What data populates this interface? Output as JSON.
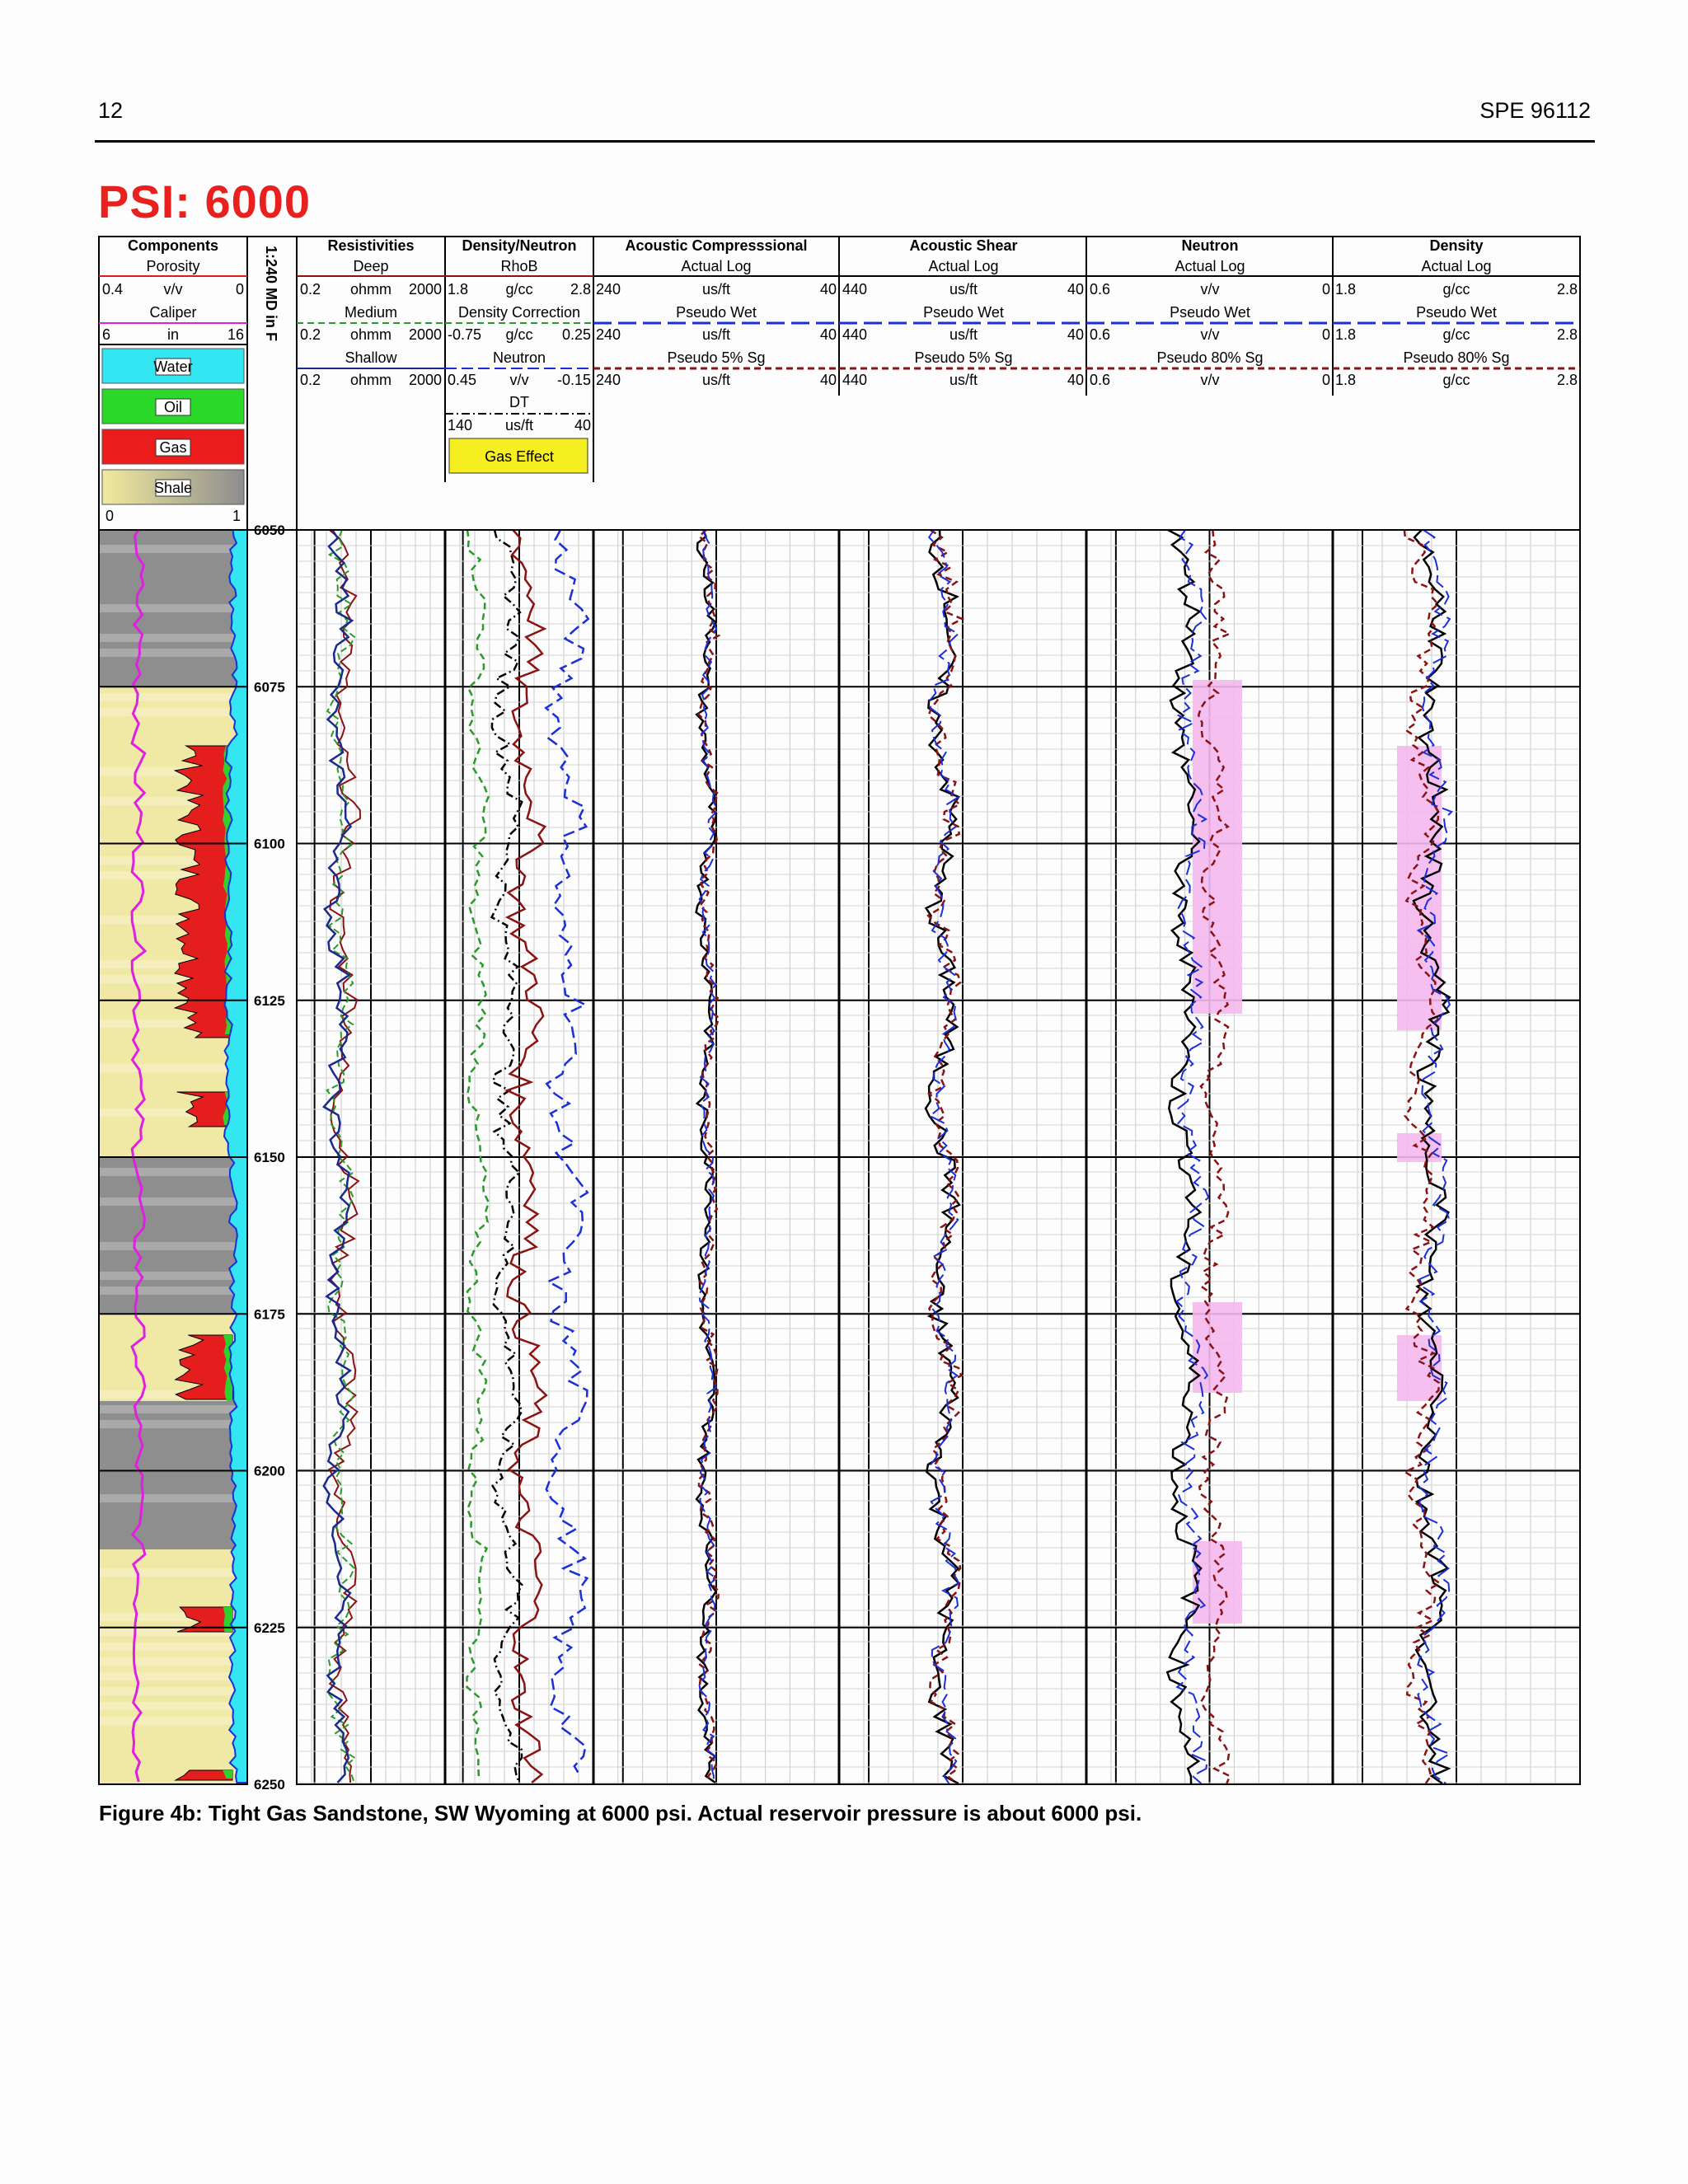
{
  "page": {
    "number": "12",
    "paper_id": "SPE 96112"
  },
  "figure": {
    "title": "PSI:  6000",
    "caption": "Figure 4b: Tight Gas Sandstone, SW Wyoming at 6000 psi.  Actual reservoir pressure is about 6000 psi.",
    "depth_axis_label": "1:240 MD in F",
    "depth_ticks": [
      "6050",
      "6075",
      "6100",
      "6125",
      "6150",
      "6175",
      "6200",
      "6225",
      "6250"
    ]
  },
  "tracks": {
    "components": {
      "title": "Components",
      "porosity": {
        "label": "Porosity",
        "left": "0.4",
        "unit": "v/v",
        "right": "0"
      },
      "caliper": {
        "label": "Caliper",
        "left": "6",
        "unit": "in",
        "right": "16"
      },
      "legend": [
        "Water",
        "Oil",
        "Gas",
        "Shale"
      ],
      "legend_colors": [
        "#33e6f2",
        "#2bd92b",
        "#ea1c1c",
        "#e8e09a"
      ],
      "scale_left": "0",
      "scale_right": "1"
    },
    "resistivities": {
      "title": "Resistivities",
      "curves": [
        {
          "label": "Deep",
          "left": "0.2",
          "unit": "ohmm",
          "right": "2000"
        },
        {
          "label": "Medium",
          "left": "0.2",
          "unit": "ohmm",
          "right": "2000"
        },
        {
          "label": "Shallow",
          "left": "0.2",
          "unit": "ohmm",
          "right": "2000"
        }
      ]
    },
    "density_neutron": {
      "title": "Density/Neutron",
      "curves": [
        {
          "label": "RhoB",
          "left": "1.8",
          "unit": "g/cc",
          "right": "2.8"
        },
        {
          "label": "Density Correction",
          "left": "-0.75",
          "unit": "g/cc",
          "right": "0.25"
        },
        {
          "label": "Neutron",
          "left": "0.45",
          "unit": "v/v",
          "right": "-0.15"
        },
        {
          "label": "DT",
          "left": "140",
          "unit": "us/ft",
          "right": "40"
        }
      ],
      "gas_effect_label": "Gas Effect"
    },
    "acoustic_compressional": {
      "title": "Acoustic Compresssional",
      "curves": [
        {
          "label": "Actual Log",
          "left": "240",
          "unit": "us/ft",
          "right": "40"
        },
        {
          "label": "Pseudo Wet",
          "left": "240",
          "unit": "us/ft",
          "right": "40"
        },
        {
          "label": "Pseudo 5% Sg",
          "left": "240",
          "unit": "us/ft",
          "right": "40"
        }
      ]
    },
    "acoustic_shear": {
      "title": "Acoustic Shear",
      "curves": [
        {
          "label": "Actual Log",
          "left": "440",
          "unit": "us/ft",
          "right": "40"
        },
        {
          "label": "Pseudo Wet",
          "left": "440",
          "unit": "us/ft",
          "right": "40"
        },
        {
          "label": "Pseudo 5% Sg",
          "left": "440",
          "unit": "us/ft",
          "right": "40"
        }
      ]
    },
    "neutron": {
      "title": "Neutron",
      "curves": [
        {
          "label": "Actual Log",
          "left": "0.6",
          "unit": "v/v",
          "right": "0"
        },
        {
          "label": "Pseudo Wet",
          "left": "0.6",
          "unit": "v/v",
          "right": "0"
        },
        {
          "label": "Pseudo 80% Sg",
          "left": "0.6",
          "unit": "v/v",
          "right": "0"
        }
      ]
    },
    "density": {
      "title": "Density",
      "curves": [
        {
          "label": "Actual Log",
          "left": "1.8",
          "unit": "g/cc",
          "right": "2.8"
        },
        {
          "label": "Pseudo Wet",
          "left": "1.8",
          "unit": "g/cc",
          "right": "2.8"
        },
        {
          "label": "Pseudo 80% Sg",
          "left": "1.8",
          "unit": "g/cc",
          "right": "2.8"
        }
      ]
    }
  },
  "colors": {
    "title_red": "#e8201e",
    "curve_black": "#111111",
    "curve_blue": "#1a2fd6",
    "curve_darkred": "#8a1212",
    "curve_green": "#2a9a2a",
    "caliper_magenta": "#e020e0",
    "gas_effect_yellow": "#f5ef22",
    "pseudo_fill_pink": "#f4b8ee",
    "shale_gray": "#8c8c8c"
  }
}
